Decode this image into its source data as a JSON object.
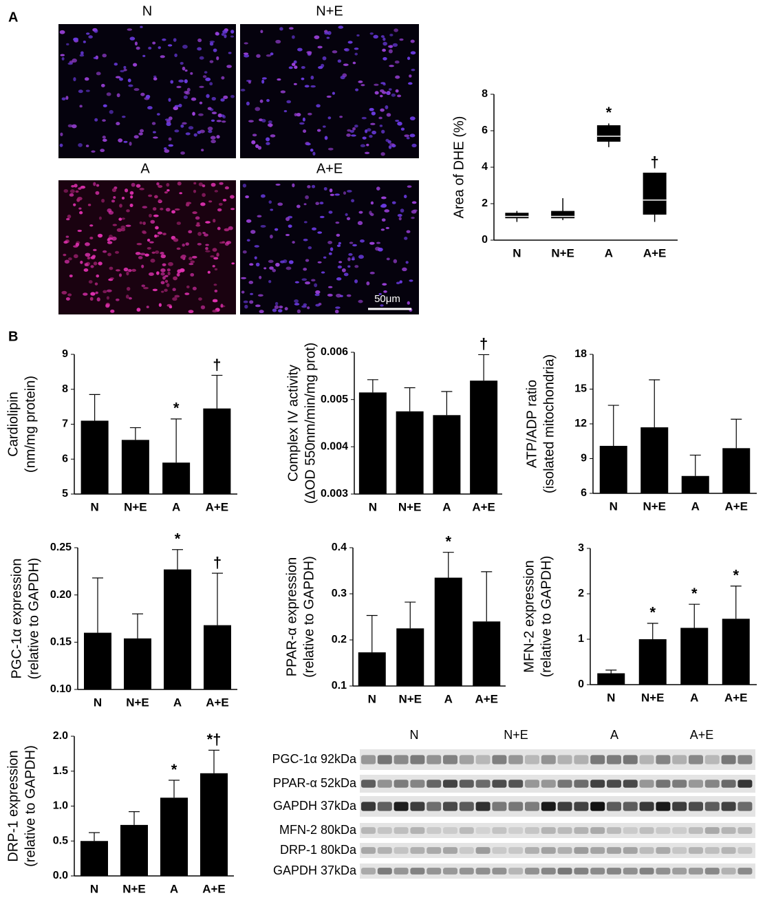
{
  "panel_labels": [
    "A",
    "B"
  ],
  "images": {
    "labels": [
      "N",
      "N+E",
      "A",
      "A+E"
    ],
    "scale_bar": "50μm"
  },
  "blot": {
    "groups": [
      "N",
      "N+E",
      "A",
      "A+E"
    ],
    "rows": [
      "PGC-1α 92kDa",
      "PPAR-α 52kDa",
      "GAPDH 37kDa",
      "MFN-2 80kDa",
      "DRP-1 80kDa",
      "GAPDH 37kDa"
    ]
  },
  "chart_data": [
    {
      "type": "box",
      "ylabel": "Area of DHE (%)",
      "categories": [
        "N",
        "N+E",
        "A",
        "A+E"
      ],
      "boxes": [
        {
          "min": 1.0,
          "q1": 1.2,
          "median": 1.3,
          "q3": 1.5,
          "max": 1.6
        },
        {
          "min": 1.1,
          "q1": 1.2,
          "median": 1.3,
          "q3": 1.6,
          "max": 2.3
        },
        {
          "min": 5.1,
          "q1": 5.4,
          "median": 5.7,
          "q3": 6.3,
          "max": 6.4
        },
        {
          "min": 1.0,
          "q1": 1.4,
          "median": 2.2,
          "q3": 3.7,
          "max": 3.7
        }
      ],
      "annotations": [
        null,
        null,
        "*",
        "†"
      ],
      "color": "#000000",
      "ylim": [
        0,
        8
      ],
      "yticks": [
        0,
        2,
        4,
        6,
        8
      ]
    },
    {
      "type": "bar",
      "ylabel": [
        "Cardiolipin",
        "(nm/mg protein)"
      ],
      "categories": [
        "N",
        "N+E",
        "A",
        "A+E"
      ],
      "values": [
        7.1,
        6.55,
        5.9,
        7.45
      ],
      "errors": [
        0.75,
        0.35,
        1.25,
        0.95
      ],
      "annotations": [
        null,
        null,
        "*",
        "†"
      ],
      "color": "#000000",
      "ylim": [
        5,
        9
      ],
      "yticks": [
        5,
        6,
        7,
        8,
        9
      ]
    },
    {
      "type": "bar",
      "ylabel": [
        "Complex IV activity",
        "(ΔOD 550nm/min/mg prot)"
      ],
      "categories": [
        "N",
        "N+E",
        "A",
        "A+E"
      ],
      "values": [
        0.00515,
        0.00475,
        0.00467,
        0.0054
      ],
      "errors": [
        0.00027,
        0.0005,
        0.0005,
        0.00055
      ],
      "annotations": [
        null,
        null,
        null,
        "†"
      ],
      "color": "#000000",
      "ylim": [
        0.003,
        0.006
      ],
      "yticks": [
        0.003,
        0.004,
        0.005,
        0.006
      ]
    },
    {
      "type": "bar",
      "ylabel": [
        "ATP/ADP ratio",
        "(isolated mitochondria)"
      ],
      "categories": [
        "N",
        "N+E",
        "A",
        "A+E"
      ],
      "values": [
        10.1,
        11.7,
        7.5,
        9.9
      ],
      "errors": [
        3.5,
        4.1,
        1.8,
        2.5
      ],
      "color": "#000000",
      "ylim": [
        6,
        18
      ],
      "yticks": [
        6,
        9,
        12,
        15,
        18
      ]
    },
    {
      "type": "bar",
      "ylabel": [
        "PGC-1α expression",
        "(relative to GAPDH)"
      ],
      "categories": [
        "N",
        "N+E",
        "A",
        "A+E"
      ],
      "values": [
        0.16,
        0.154,
        0.227,
        0.168
      ],
      "errors": [
        0.058,
        0.026,
        0.021,
        0.055
      ],
      "annotations": [
        null,
        null,
        "*",
        "†"
      ],
      "color": "#000000",
      "ylim": [
        0.1,
        0.25
      ],
      "yticks": [
        {
          "value": 0.1,
          "label": "0.10"
        },
        0.15,
        {
          "value": 0.2,
          "label": "0.20"
        },
        0.25
      ]
    },
    {
      "type": "bar",
      "ylabel": [
        "PPAR-α expression",
        "(relative to GAPDH)"
      ],
      "categories": [
        "N",
        "N+E",
        "A",
        "A+E"
      ],
      "values": [
        0.173,
        0.225,
        0.335,
        0.24
      ],
      "errors": [
        0.08,
        0.057,
        0.055,
        0.108
      ],
      "annotations": [
        null,
        null,
        "*",
        null
      ],
      "color": "#000000",
      "ylim": [
        0.1,
        0.4
      ],
      "yticks": [
        0.1,
        0.2,
        0.3,
        0.4
      ]
    },
    {
      "type": "bar",
      "ylabel": [
        "MFN-2 expression",
        "(relative to GAPDH)"
      ],
      "categories": [
        "N",
        "N+E",
        "A",
        "A+E"
      ],
      "values": [
        0.25,
        1.0,
        1.25,
        1.45
      ],
      "errors": [
        0.07,
        0.35,
        0.52,
        0.72
      ],
      "annotations": [
        null,
        "*",
        "*",
        "*"
      ],
      "color": "#000000",
      "ylim": [
        0,
        3
      ],
      "yticks": [
        0,
        1,
        2,
        3
      ]
    },
    {
      "type": "bar",
      "ylabel": [
        "DRP-1 expression",
        "(relative to GAPDH)"
      ],
      "categories": [
        "N",
        "N+E",
        "A",
        "A+E"
      ],
      "values": [
        0.5,
        0.73,
        1.12,
        1.47
      ],
      "errors": [
        0.12,
        0.19,
        0.25,
        0.33
      ],
      "annotations": [
        null,
        null,
        "*",
        "*†"
      ],
      "color": "#000000",
      "ylim": [
        0,
        2
      ],
      "yticks": [
        {
          "value": 0,
          "label": "0.0"
        },
        0.5,
        {
          "value": 1,
          "label": "1.0"
        },
        1.5,
        {
          "value": 2,
          "label": "2.0"
        }
      ]
    }
  ]
}
